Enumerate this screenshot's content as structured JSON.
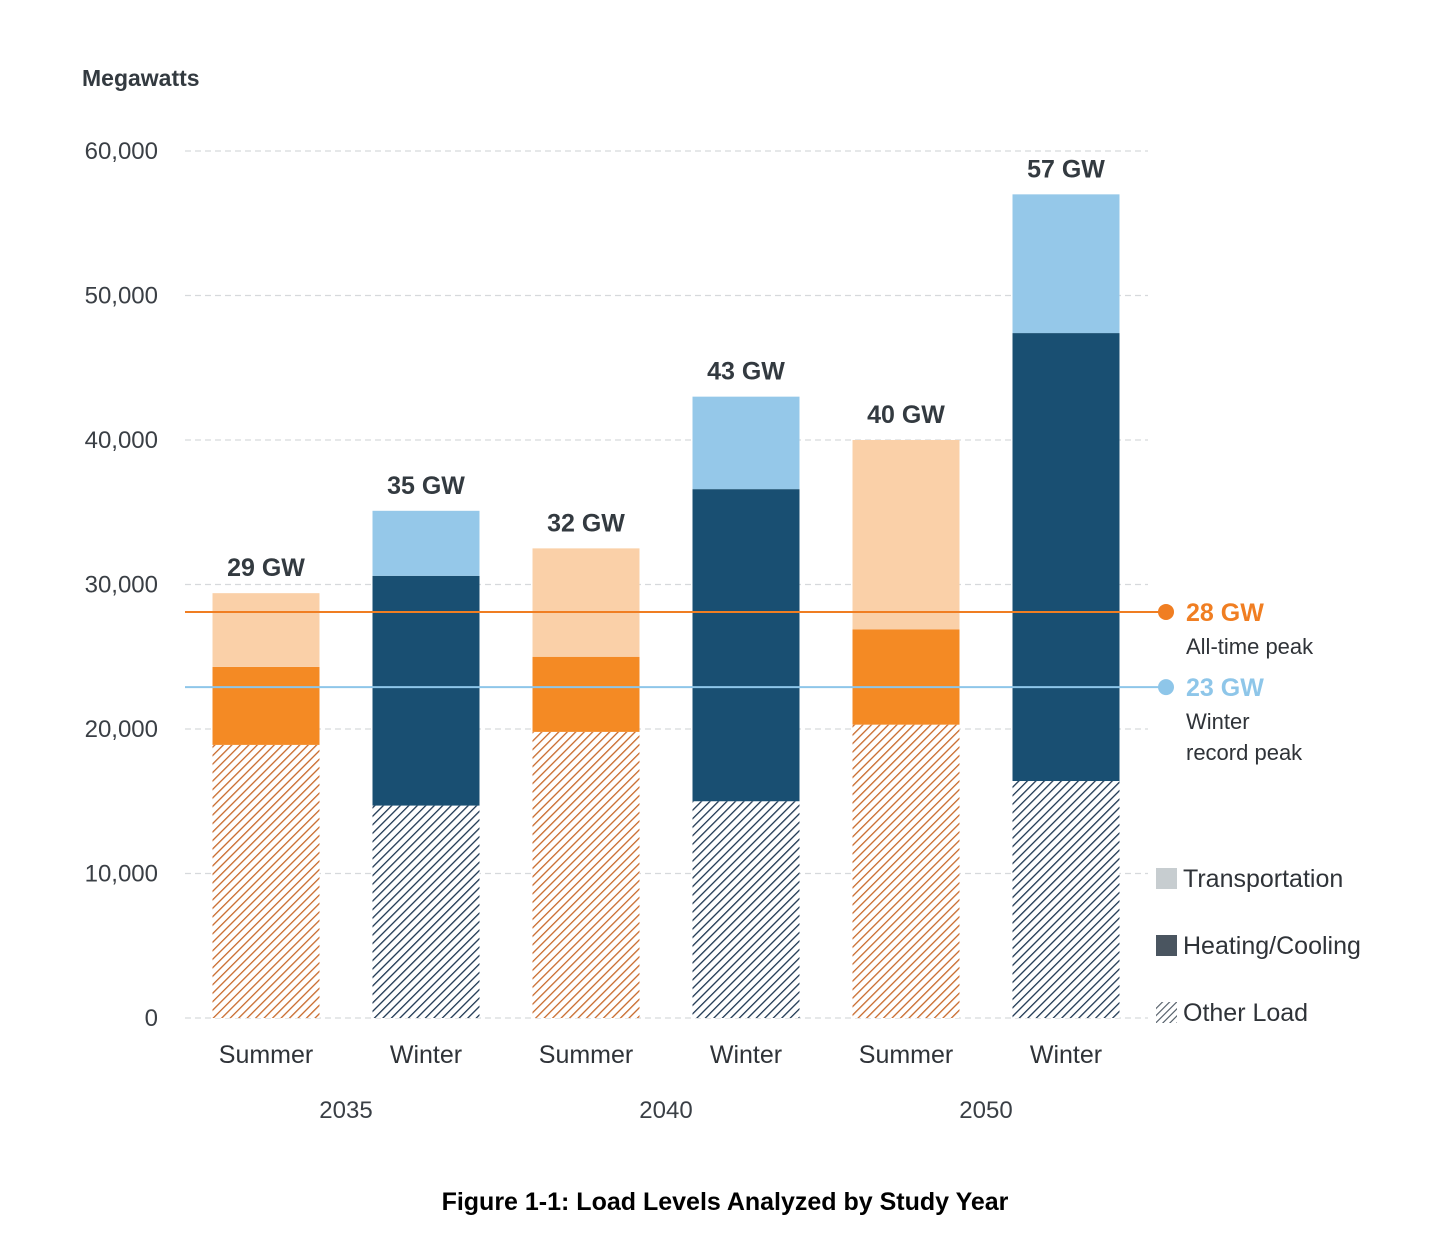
{
  "chart_data": {
    "type": "bar",
    "stacked": true,
    "title": "Figure 1-1: Load Levels Analyzed by Study Year",
    "ylabel": "Megawatts",
    "ylim": [
      0,
      60000
    ],
    "yticks": [
      0,
      10000,
      20000,
      30000,
      40000,
      50000,
      60000
    ],
    "ytick_labels": [
      "0",
      "10,000",
      "20,000",
      "30,000",
      "40,000",
      "50,000",
      "60,000"
    ],
    "grid": true,
    "legend_position": "right",
    "groups": [
      "2035",
      "2040",
      "2050"
    ],
    "categories": [
      "Summer",
      "Winter",
      "Summer",
      "Winter",
      "Summer",
      "Winter"
    ],
    "totals_labels": [
      "29 GW",
      "35 GW",
      "32 GW",
      "43 GW",
      "40 GW",
      "57 GW"
    ],
    "series": [
      {
        "name": "Other Load",
        "values": [
          18900,
          14700,
          19800,
          15000,
          20300,
          16400
        ]
      },
      {
        "name": "Heating/Cooling",
        "values": [
          5400,
          15900,
          5200,
          21600,
          6600,
          31000
        ]
      },
      {
        "name": "Transportation",
        "values": [
          5100,
          4500,
          7500,
          6400,
          13100,
          9600
        ]
      }
    ],
    "season_colors": {
      "Summer": {
        "Other Load": "#c8692a",
        "Heating/Cooling": "#f48a24",
        "Transportation": "#fad0a8"
      },
      "Winter": {
        "Other Load": "#1c3550",
        "Heating/Cooling": "#194f72",
        "Transportation": "#95c8e9"
      }
    },
    "reference_lines": [
      {
        "value": 28100,
        "label": "28 GW",
        "description": [
          "All-time peak"
        ],
        "color": "#f07e22"
      },
      {
        "value": 22900,
        "label": "23 GW",
        "description": [
          "Winter",
          "record peak"
        ],
        "color": "#8ec6e9"
      }
    ],
    "legend": [
      {
        "name": "Transportation",
        "icon": "square-icon",
        "color": "#c7cdd0"
      },
      {
        "name": "Heating/Cooling",
        "icon": "square-icon",
        "color": "#4a5560"
      },
      {
        "name": "Other Load",
        "icon": "hatched-square-icon",
        "color": "#4a5560"
      }
    ]
  }
}
